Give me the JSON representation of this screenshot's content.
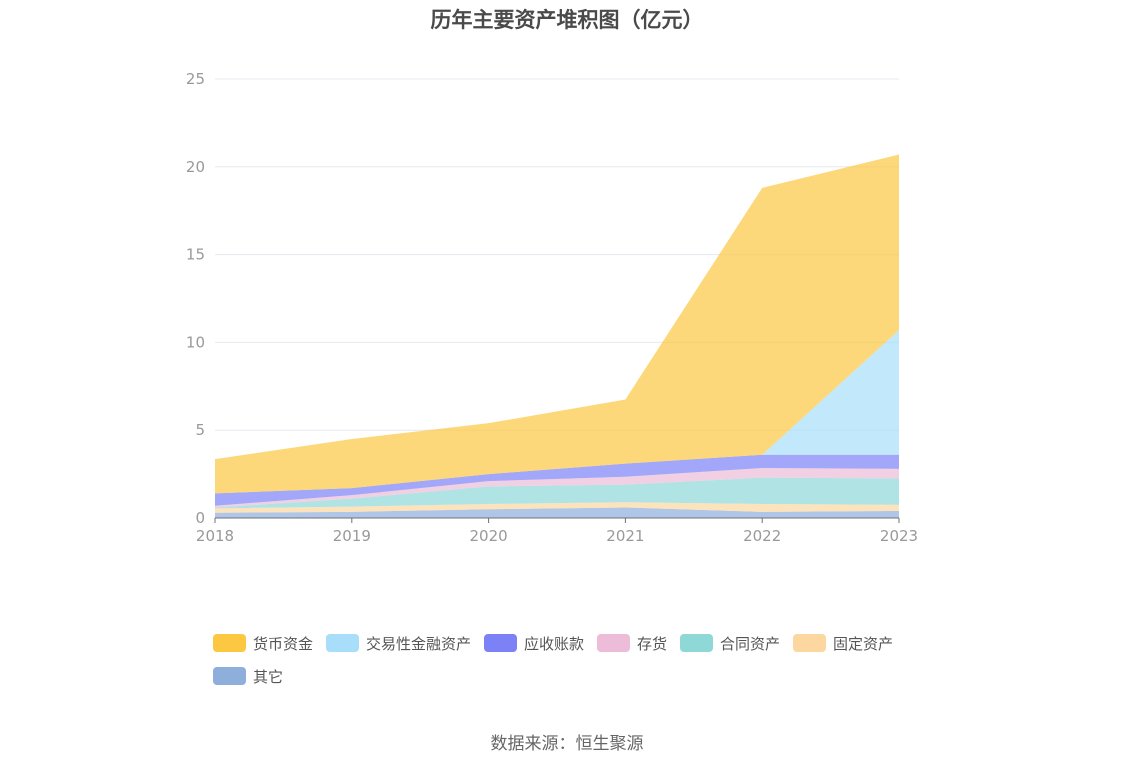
{
  "chart_data": {
    "type": "area",
    "title": "历年主要资产堆积图（亿元）",
    "stacked": true,
    "categories": [
      "2018",
      "2019",
      "2020",
      "2021",
      "2022",
      "2023"
    ],
    "ylim": [
      0,
      25
    ],
    "yticks": [
      "0",
      "5",
      "10",
      "15",
      "20",
      "25"
    ],
    "grid": true,
    "legend_position": "bottom",
    "series": [
      {
        "name": "其它",
        "color": "#8eaedc",
        "values": [
          0.3,
          0.35,
          0.5,
          0.6,
          0.35,
          0.4
        ]
      },
      {
        "name": "固定资产",
        "color": "#fcd7a0",
        "values": [
          0.25,
          0.3,
          0.3,
          0.3,
          0.45,
          0.35
        ]
      },
      {
        "name": "合同资产",
        "color": "#8fd8d8",
        "values": [
          0.05,
          0.45,
          1.0,
          1.0,
          1.5,
          1.5
        ]
      },
      {
        "name": "存货",
        "color": "#ecbcd9",
        "values": [
          0.1,
          0.2,
          0.3,
          0.45,
          0.55,
          0.55
        ]
      },
      {
        "name": "应收账款",
        "color": "#7c82f6",
        "values": [
          0.7,
          0.4,
          0.4,
          0.75,
          0.75,
          0.8
        ]
      },
      {
        "name": "交易性金融资产",
        "color": "#a8def9",
        "values": [
          0.0,
          0.0,
          0.0,
          0.0,
          0.0,
          7.1
        ]
      },
      {
        "name": "货币资金",
        "color": "#fcc842",
        "values": [
          1.95,
          2.8,
          2.9,
          3.65,
          15.2,
          10.0
        ]
      }
    ],
    "legend_order": [
      "货币资金",
      "交易性金融资产",
      "应收账款",
      "存货",
      "合同资产",
      "固定资产",
      "其它"
    ]
  },
  "source": "数据来源：恒生聚源"
}
